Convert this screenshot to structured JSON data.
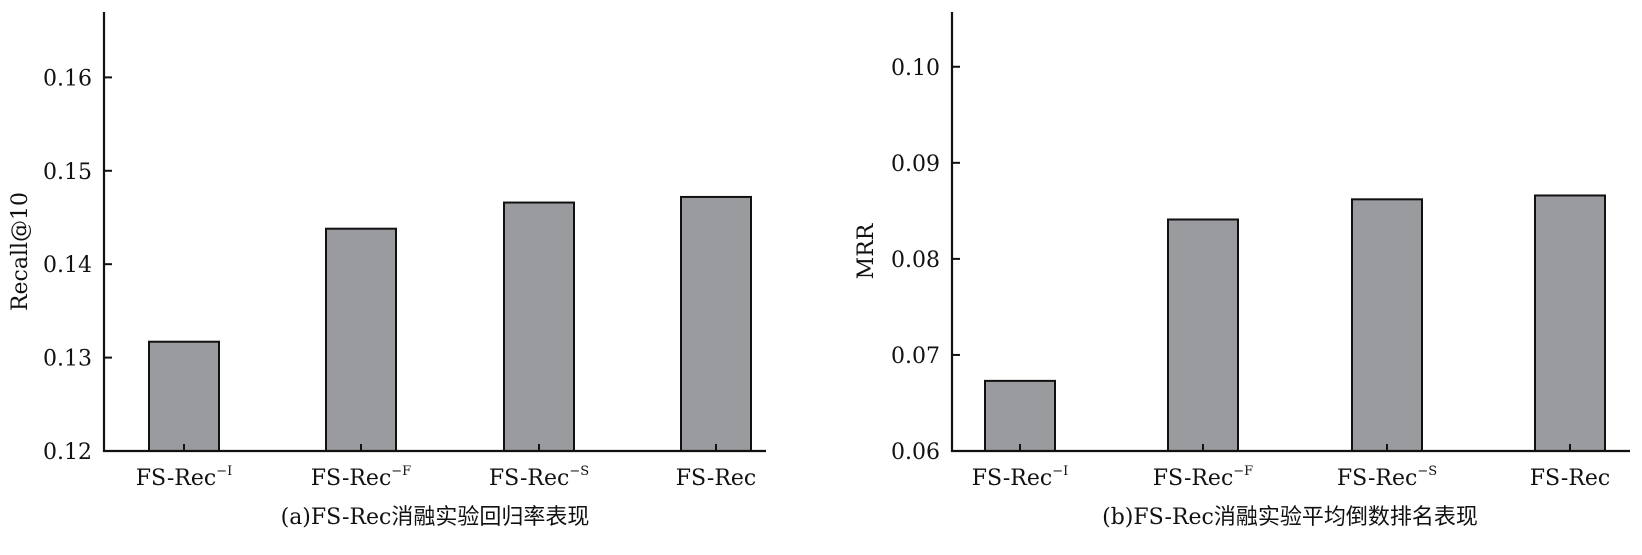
{
  "colors": {
    "bar_fill": "#9a9b9f",
    "bar_stroke": "#111111",
    "axis": "#111111"
  },
  "chart_data": [
    {
      "type": "bar",
      "caption": "(a)FS-Rec消融实验回归率表现",
      "ylabel": "Recall@10",
      "xlabel": "",
      "categories": [
        {
          "base": "FS-Rec",
          "sup": "−I"
        },
        {
          "base": "FS-Rec",
          "sup": "−F"
        },
        {
          "base": "FS-Rec",
          "sup": "−S"
        },
        {
          "base": "FS-Rec",
          "sup": ""
        }
      ],
      "values": [
        0.1317,
        0.1438,
        0.1466,
        0.1472
      ],
      "ylim": [
        0.12,
        0.167
      ],
      "yticks": [
        "0.12",
        "0.13",
        "0.14",
        "0.15",
        "0.16"
      ],
      "grid": false
    },
    {
      "type": "bar",
      "caption": "(b)FS-Rec消融实验平均倒数排名表现",
      "ylabel": "MRR",
      "xlabel": "",
      "categories": [
        {
          "base": "FS-Rec",
          "sup": "−I"
        },
        {
          "base": "FS-Rec",
          "sup": "−F"
        },
        {
          "base": "FS-Rec",
          "sup": "−S"
        },
        {
          "base": "FS-Rec",
          "sup": ""
        }
      ],
      "values": [
        0.0673,
        0.0841,
        0.0862,
        0.0866
      ],
      "ylim": [
        0.06,
        0.1057
      ],
      "yticks": [
        "0.06",
        "0.07",
        "0.08",
        "0.09",
        "0.10"
      ],
      "grid": false
    }
  ]
}
